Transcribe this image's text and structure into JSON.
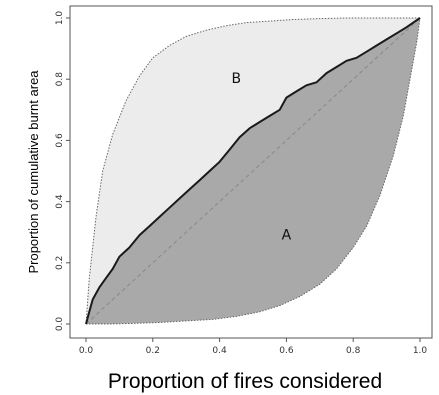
{
  "chart_data": {
    "type": "area",
    "xlabel": "Proportion of fires considered",
    "ylabel": "Proportion of cumulative burnt area",
    "xlim": [
      0,
      1
    ],
    "ylim": [
      0,
      1
    ],
    "x_ticks": [
      "0.0",
      "0.2",
      "0.4",
      "0.6",
      "0.8",
      "1.0"
    ],
    "y_ticks": [
      "0.0",
      "0.2",
      "0.4",
      "0.6",
      "0.8",
      "1.0"
    ],
    "grid": false,
    "region_labels": [
      {
        "text": "B",
        "x": 0.45,
        "y": 0.8
      },
      {
        "text": "A",
        "x": 0.6,
        "y": 0.29
      }
    ],
    "series": [
      {
        "role": "curve",
        "x": [
          0.0,
          0.01,
          0.02,
          0.04,
          0.06,
          0.08,
          0.1,
          0.13,
          0.16,
          0.19,
          0.22,
          0.25,
          0.28,
          0.31,
          0.34,
          0.37,
          0.4,
          0.43,
          0.46,
          0.49,
          0.52,
          0.55,
          0.58,
          0.6,
          0.63,
          0.66,
          0.69,
          0.72,
          0.75,
          0.78,
          0.81,
          0.84,
          0.87,
          0.9,
          0.93,
          0.96,
          1.0
        ],
        "y": [
          0.0,
          0.04,
          0.08,
          0.12,
          0.15,
          0.18,
          0.22,
          0.25,
          0.29,
          0.32,
          0.35,
          0.38,
          0.41,
          0.44,
          0.47,
          0.5,
          0.53,
          0.57,
          0.61,
          0.64,
          0.66,
          0.68,
          0.7,
          0.74,
          0.76,
          0.78,
          0.79,
          0.82,
          0.84,
          0.86,
          0.87,
          0.89,
          0.91,
          0.93,
          0.95,
          0.97,
          1.0
        ]
      },
      {
        "role": "upper-bound",
        "x": [
          0.0,
          0.01,
          0.03,
          0.05,
          0.08,
          0.12,
          0.16,
          0.2,
          0.25,
          0.3,
          0.36,
          0.42,
          0.48,
          0.55,
          0.62,
          0.7,
          0.78,
          0.86,
          0.93,
          1.0
        ],
        "y": [
          0.0,
          0.15,
          0.35,
          0.5,
          0.62,
          0.73,
          0.81,
          0.87,
          0.91,
          0.94,
          0.96,
          0.975,
          0.985,
          0.99,
          0.995,
          0.998,
          1.0,
          1.0,
          1.0,
          1.0
        ]
      },
      {
        "role": "lower-bound",
        "x": [
          0.0,
          0.07,
          0.14,
          0.22,
          0.3,
          0.38,
          0.45,
          0.52,
          0.58,
          0.64,
          0.7,
          0.75,
          0.8,
          0.84,
          0.88,
          0.92,
          0.95,
          0.97,
          0.99,
          1.0
        ],
        "y": [
          0.0,
          0.0,
          0.002,
          0.005,
          0.01,
          0.015,
          0.025,
          0.04,
          0.06,
          0.09,
          0.13,
          0.18,
          0.25,
          0.32,
          0.42,
          0.55,
          0.68,
          0.8,
          0.92,
          1.0
        ]
      },
      {
        "role": "diagonal",
        "x": [
          0.0,
          1.0
        ],
        "y": [
          0.0,
          1.0
        ]
      }
    ],
    "colors": {
      "region_B": "#ececec",
      "region_A": "#a9a9a9",
      "curve": "#1a1a1a",
      "bounds": "#666666",
      "diagonal": "#888888"
    }
  }
}
